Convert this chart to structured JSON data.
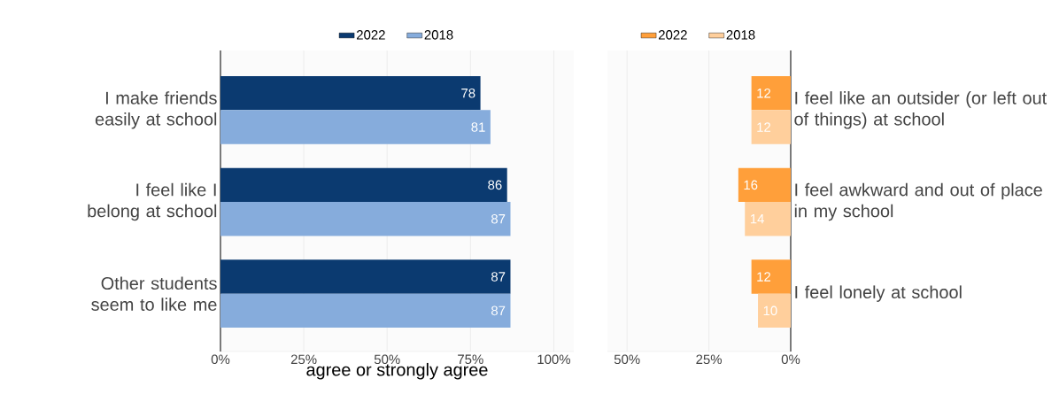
{
  "chart_data": [
    {
      "type": "bar",
      "orientation": "horizontal",
      "categories": [
        "I make friends easily at school",
        "I feel like I belong at school",
        "Other students seem to like me"
      ],
      "series": [
        {
          "name": "2022",
          "color": "#0b3a70",
          "values": [
            78,
            86,
            87
          ]
        },
        {
          "name": "2018",
          "color": "#86acdc",
          "values": [
            81,
            87,
            87
          ]
        }
      ],
      "xlim": [
        0,
        106
      ],
      "xticks": [
        {
          "value": 0,
          "label": "0%"
        },
        {
          "value": 25,
          "label": "25%"
        },
        {
          "value": 50,
          "label": "50%"
        },
        {
          "value": 75,
          "label": "75%"
        },
        {
          "value": 100,
          "label": "100%"
        }
      ],
      "xlabel": "agree or strongly agree",
      "grid": "x",
      "legend": "top",
      "data_labels": true
    },
    {
      "type": "bar",
      "orientation": "horizontal",
      "categories": [
        "I feel like an outsider (or left out of things) at school",
        "I feel awkward and out of place in my school",
        "I feel lonely at school"
      ],
      "series": [
        {
          "name": "2022",
          "color": "#ff9f3a",
          "values": [
            12,
            16,
            12
          ]
        },
        {
          "name": "2018",
          "color": "#ffcf9c",
          "values": [
            12,
            14,
            10
          ]
        }
      ],
      "xlim": [
        56,
        0
      ],
      "xticks": [
        {
          "value": 50,
          "label": "50%"
        },
        {
          "value": 25,
          "label": "25%"
        },
        {
          "value": 0,
          "label": "0%"
        }
      ],
      "grid": "x",
      "legend": "top",
      "data_labels": true
    }
  ]
}
